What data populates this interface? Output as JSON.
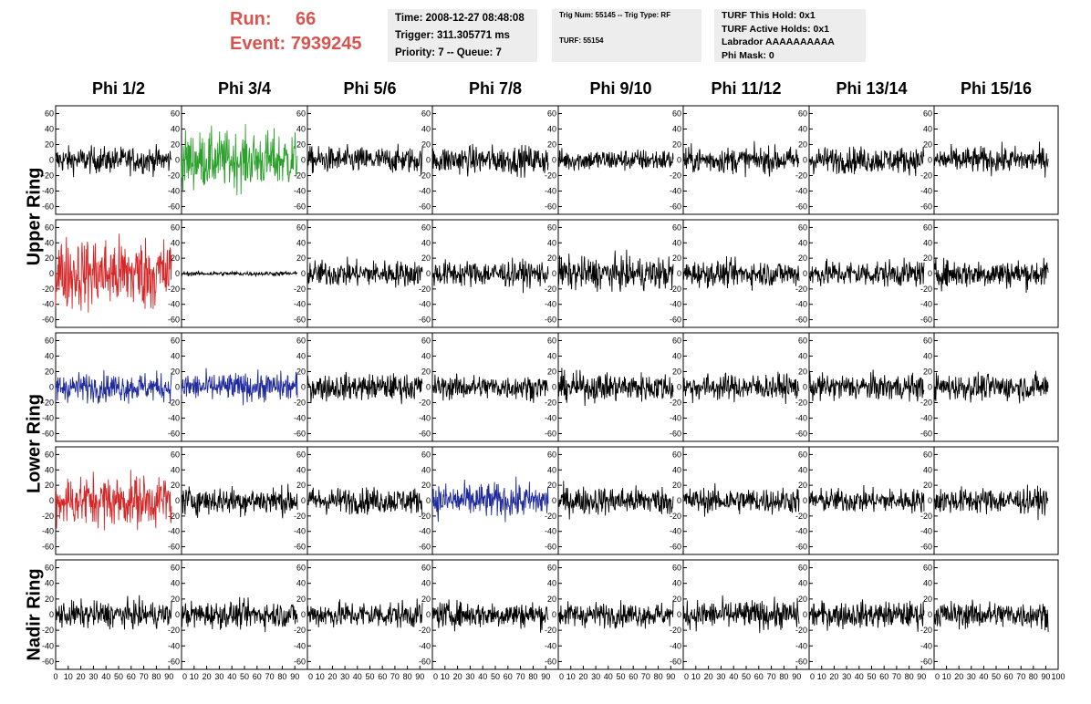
{
  "header": {
    "run_label": "Run:",
    "run_value": "66",
    "event_label": "Event:",
    "event_value": "7939245",
    "run_color": "#d9534f"
  },
  "info_time": {
    "time": "Time: 2008-12-27 08:48:08",
    "trigger": "Trigger: 311.305771 ms",
    "priority": "Priority: 7 -- Queue: 7"
  },
  "info_trig": {
    "trig": "Trig Num: 55145 -- Trig Type: RF",
    "turf": "TURF: 55154"
  },
  "info_turf": {
    "hold": "TURF This Hold: 0x1",
    "active": "TURF Active Holds: 0x1",
    "labrador": "Labrador AAAAAAAAAA",
    "phimask": "Phi Mask: 0"
  },
  "chart_data": {
    "type": "line",
    "columns": [
      "Phi 1/2",
      "Phi 3/4",
      "Phi 5/6",
      "Phi 7/8",
      "Phi 9/10",
      "Phi 11/12",
      "Phi 13/14",
      "Phi 15/16"
    ],
    "row_labels": [
      {
        "label": "Upper Ring",
        "rows": [
          0,
          1
        ]
      },
      {
        "label": "Lower Ring",
        "rows": [
          2,
          3
        ]
      },
      {
        "label": "Nadir Ring",
        "rows": [
          4
        ]
      }
    ],
    "xlim": [
      0,
      100
    ],
    "ylim": [
      -70,
      70
    ],
    "y_ticks": [
      -60,
      -40,
      -20,
      0,
      20,
      40,
      60
    ],
    "x_ticks": [
      0,
      10,
      20,
      30,
      40,
      50,
      60,
      70,
      80,
      90,
      100
    ],
    "x_tick_labels": [
      "0",
      "10",
      "20",
      "30",
      "40",
      "50",
      "60",
      "70",
      "80",
      "90",
      "100"
    ],
    "waveform_samples": 260,
    "waveform_span": [
      0,
      92
    ],
    "grid": false,
    "colors": {
      "black": "#000000",
      "green": "#2ca02c",
      "red": "#d62728",
      "blue": "#1f2a9c"
    },
    "panels": [
      [
        {
          "color": "black",
          "amp": 12
        },
        {
          "color": "green",
          "amp": 26
        },
        {
          "color": "black",
          "amp": 12
        },
        {
          "color": "black",
          "amp": 13
        },
        {
          "color": "black",
          "amp": 10
        },
        {
          "color": "black",
          "amp": 12
        },
        {
          "color": "black",
          "amp": 12
        },
        {
          "color": "black",
          "amp": 12
        }
      ],
      [
        {
          "color": "red",
          "amp": 34
        },
        {
          "color": "black",
          "amp": 2
        },
        {
          "color": "black",
          "amp": 12
        },
        {
          "color": "black",
          "amp": 12
        },
        {
          "color": "black",
          "amp": 15
        },
        {
          "color": "black",
          "amp": 12
        },
        {
          "color": "black",
          "amp": 12
        },
        {
          "color": "black",
          "amp": 13
        }
      ],
      [
        {
          "color": "blue",
          "amp": 13
        },
        {
          "color": "blue",
          "amp": 13
        },
        {
          "color": "black",
          "amp": 12
        },
        {
          "color": "black",
          "amp": 11
        },
        {
          "color": "black",
          "amp": 13
        },
        {
          "color": "black",
          "amp": 12
        },
        {
          "color": "black",
          "amp": 12
        },
        {
          "color": "black",
          "amp": 12
        }
      ],
      [
        {
          "color": "red",
          "amp": 24
        },
        {
          "color": "black",
          "amp": 13
        },
        {
          "color": "black",
          "amp": 12
        },
        {
          "color": "blue",
          "amp": 16
        },
        {
          "color": "black",
          "amp": 13
        },
        {
          "color": "black",
          "amp": 12
        },
        {
          "color": "black",
          "amp": 11
        },
        {
          "color": "black",
          "amp": 12
        }
      ],
      [
        {
          "color": "black",
          "amp": 12
        },
        {
          "color": "black",
          "amp": 12
        },
        {
          "color": "black",
          "amp": 12
        },
        {
          "color": "black",
          "amp": 12
        },
        {
          "color": "black",
          "amp": 11
        },
        {
          "color": "black",
          "amp": 13
        },
        {
          "color": "black",
          "amp": 12
        },
        {
          "color": "black",
          "amp": 12
        }
      ]
    ]
  }
}
